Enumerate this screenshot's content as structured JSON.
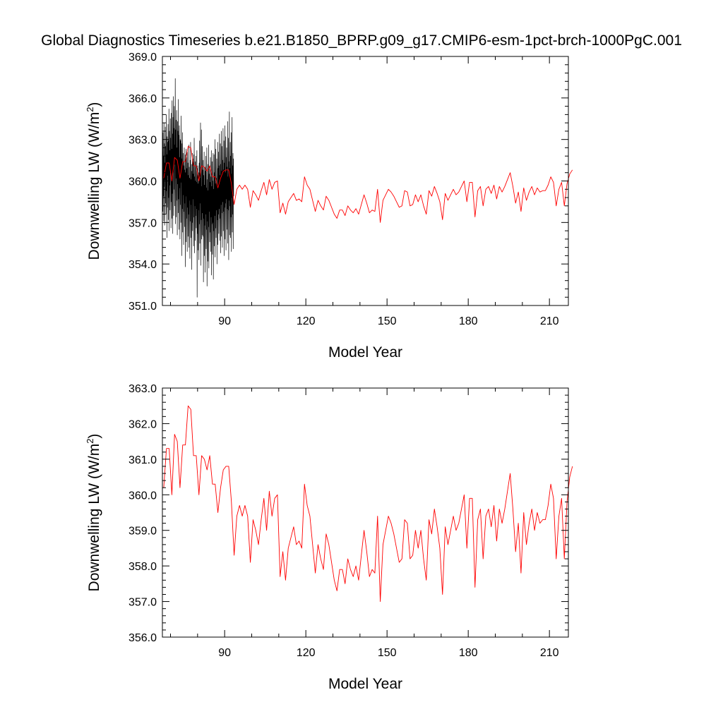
{
  "title": "Global Diagnostics Timeseries b.e21.B1850_BPRP.g09_g17.CMIP6-esm-1pct-brch-1000PgC.001",
  "colors": {
    "monthly": "#000000",
    "annual": "#ff0000",
    "axes": "#000000"
  },
  "chart_data": [
    {
      "type": "line",
      "title": "",
      "xlabel": "Model Year",
      "ylabel": "Downwelling LW (W/m",
      "ylabel_superscript": "2",
      "ylabel_close": ")",
      "xlim": [
        67,
        217
      ],
      "ylim": [
        351.0,
        369.0
      ],
      "x_ticks": [
        90,
        120,
        150,
        180,
        210
      ],
      "x_tick_labels": [
        "90",
        "120",
        "150",
        "180",
        "210"
      ],
      "y_ticks": [
        351.0,
        354.0,
        357.0,
        360.0,
        363.0,
        366.0,
        369.0
      ],
      "y_tick_labels": [
        "351.0",
        "354.0",
        "357.0",
        "360.0",
        "363.0",
        "366.0",
        "369.0"
      ],
      "grid": false,
      "series": [
        {
          "style": "monthly-raw",
          "color": "#000000",
          "x_start": 67.0,
          "x_step": 0.0833333,
          "values": [
            359.2,
            362.1,
            357.8,
            363.5,
            358.9,
            361.8,
            357.1,
            364.2,
            359.6,
            362.7,
            356.8,
            361.3,
            360.1,
            363.9,
            358.4,
            362.5,
            357.6,
            364.8,
            359.3,
            361.9,
            355.9,
            363.2,
            358.1,
            362.8,
            360.4,
            364.1,
            357.2,
            362.9,
            358.8,
            365.2,
            356.4,
            363.6,
            359.7,
            362.2,
            357.9,
            364.5,
            360.6,
            363.1,
            356.6,
            364.9,
            358.5,
            362.3,
            357.3,
            365.8,
            359.1,
            363.4,
            356.2,
            364.6,
            360.9,
            366.1,
            357.5,
            363.8,
            359.4,
            365.4,
            358.2,
            362.6,
            361.2,
            367.4,
            356.9,
            363.7,
            360.2,
            364.4,
            357.4,
            365.1,
            358.6,
            362.4,
            356.1,
            364.3,
            359.8,
            363.6,
            357.7,
            365.9,
            358.7,
            363.3,
            356.5,
            364.0,
            359.5,
            361.7,
            355.8,
            363.0,
            358.3,
            362.9,
            357.0,
            364.7,
            359.9,
            361.6,
            354.6,
            362.7,
            358.0,
            363.5,
            356.3,
            361.4,
            359.0,
            362.0,
            355.4,
            361.1,
            357.8,
            362.4,
            356.7,
            360.8,
            358.4,
            361.9,
            353.8,
            360.6,
            358.9,
            362.3,
            355.6,
            361.7,
            357.3,
            360.9,
            354.9,
            362.1,
            358.1,
            361.3,
            356.0,
            360.4,
            357.6,
            362.6,
            355.2,
            361.0,
            358.6,
            360.2,
            354.4,
            361.5,
            357.1,
            362.8,
            355.9,
            360.1,
            358.3,
            361.2,
            353.6,
            360.7,
            357.0,
            362.0,
            356.4,
            361.6,
            358.7,
            360.5,
            355.3,
            361.9,
            357.4,
            363.1,
            354.8,
            360.3,
            358.2,
            361.4,
            355.7,
            360.0,
            357.5,
            361.8,
            356.6,
            359.9,
            358.0,
            362.2,
            351.6,
            360.9,
            356.2,
            361.1,
            355.0,
            359.8,
            357.9,
            360.6,
            354.3,
            361.3,
            356.9,
            362.9,
            355.5,
            360.2,
            358.4,
            364.2,
            353.9,
            361.0,
            357.2,
            363.7,
            355.8,
            359.6,
            357.7,
            362.5,
            356.1,
            360.8,
            356.0,
            361.5,
            352.7,
            360.4,
            357.3,
            362.1,
            354.6,
            359.7,
            356.8,
            361.0,
            353.4,
            360.7,
            357.6,
            361.8,
            355.1,
            359.5,
            356.5,
            362.4,
            352.4,
            360.1,
            357.1,
            361.2,
            354.2,
            359.3,
            356.7,
            362.6,
            353.7,
            360.5,
            357.8,
            361.0,
            355.6,
            359.9,
            356.3,
            361.7,
            354.9,
            360.3,
            357.4,
            362.2,
            353.2,
            359.6,
            356.9,
            361.4,
            354.7,
            360.0,
            357.0,
            362.0,
            352.9,
            359.4,
            356.4,
            361.9,
            355.3,
            360.6,
            357.5,
            363.0,
            354.5,
            359.8,
            356.6,
            362.3,
            355.9,
            360.2,
            357.9,
            361.6,
            354.0,
            359.7,
            357.2,
            362.8,
            355.4,
            360.9,
            357.6,
            362.1,
            356.2,
            361.1,
            358.0,
            363.4,
            355.7,
            360.4,
            357.3,
            362.7,
            354.8,
            361.2,
            358.3,
            363.6,
            356.0,
            360.7,
            357.7,
            362.5,
            355.2,
            361.5,
            358.5,
            363.8,
            356.4,
            360.8,
            357.8,
            362.9,
            354.6,
            361.3,
            358.1,
            364.0,
            355.8,
            360.6,
            358.4,
            363.2,
            355.0,
            361.7,
            358.7,
            362.4,
            356.5,
            361.0,
            358.0,
            364.3,
            355.5,
            360.3,
            357.9,
            363.1,
            354.3,
            361.4,
            358.6,
            365.0,
            356.1,
            360.9,
            358.2,
            362.8,
            355.9,
            361.8,
            357.4,
            363.5,
            354.9,
            360.5,
            358.8,
            364.6,
            356.3,
            361.1,
            357.6,
            362.0,
            355.1,
            361.6,
            358.9
          ]
        },
        {
          "style": "annual-mean",
          "color": "#ff0000",
          "x_start": 67.5,
          "x_step": 1,
          "values": [
            360.2,
            361.3,
            361.3,
            360.0,
            361.7,
            361.5,
            360.2,
            361.4,
            361.4,
            362.5,
            362.4,
            361.1,
            361.1,
            360.0,
            361.1,
            361.0,
            360.7,
            361.1,
            360.3,
            360.3,
            359.5,
            360.2,
            360.7,
            360.8,
            360.8,
            359.8,
            358.3,
            359.4,
            359.7,
            359.4,
            359.7,
            359.4,
            358.1,
            359.3,
            359.0,
            358.6,
            359.3,
            359.9,
            359.0,
            360.1,
            359.4,
            359.9,
            360.0,
            357.7,
            358.4,
            357.6,
            358.5,
            358.8,
            359.1,
            358.6,
            358.7,
            358.5,
            360.3,
            359.7,
            359.4,
            358.6,
            357.8,
            358.6,
            358.2,
            357.9,
            358.9,
            358.6,
            358.1,
            357.6,
            357.3,
            357.9,
            357.9,
            357.5,
            358.2,
            357.9,
            357.7,
            358.0,
            357.6,
            358.3,
            359.0,
            358.4,
            357.7,
            357.9,
            357.8,
            359.4,
            357.0,
            358.6,
            359.0,
            359.4,
            359.2,
            358.9,
            358.5,
            358.1,
            358.2,
            359.3,
            359.2,
            358.2,
            358.3,
            359.0,
            358.5,
            359.0,
            358.2,
            357.6,
            359.3,
            358.9,
            359.6,
            359.1,
            358.5,
            357.2,
            359.1,
            358.6,
            359.0,
            359.4,
            359.0,
            359.2,
            359.6,
            360.0,
            358.5,
            359.9,
            359.9,
            357.4,
            359.3,
            359.6,
            358.2,
            359.4,
            359.6,
            359.1,
            359.7,
            358.7,
            359.6,
            359.2,
            359.6,
            360.1,
            360.6,
            359.6,
            358.4,
            359.2,
            357.8,
            359.5,
            358.6,
            359.2,
            359.6,
            359.0,
            359.5,
            359.2,
            359.3,
            359.3,
            359.7,
            360.3,
            359.9,
            358.2,
            359.4,
            359.9,
            358.2,
            359.8,
            360.5,
            360.8
          ]
        }
      ]
    },
    {
      "type": "line",
      "title": "",
      "xlabel": "Model Year",
      "ylabel": "Downwelling LW (W/m",
      "ylabel_superscript": "2",
      "ylabel_close": ")",
      "xlim": [
        67,
        217
      ],
      "ylim": [
        356.0,
        363.0
      ],
      "x_ticks": [
        90,
        120,
        150,
        180,
        210
      ],
      "x_tick_labels": [
        "90",
        "120",
        "150",
        "180",
        "210"
      ],
      "y_ticks": [
        356.0,
        357.0,
        358.0,
        359.0,
        360.0,
        361.0,
        362.0,
        363.0
      ],
      "y_tick_labels": [
        "356.0",
        "357.0",
        "358.0",
        "359.0",
        "360.0",
        "361.0",
        "362.0",
        "363.0"
      ],
      "grid": false,
      "series": [
        {
          "style": "annual-mean",
          "color": "#ff0000",
          "x_start": 67.5,
          "x_step": 1,
          "values": [
            360.2,
            361.3,
            361.3,
            360.0,
            361.7,
            361.5,
            360.2,
            361.4,
            361.4,
            362.5,
            362.4,
            361.1,
            361.1,
            360.0,
            361.1,
            361.0,
            360.7,
            361.1,
            360.3,
            360.3,
            359.5,
            360.2,
            360.7,
            360.8,
            360.8,
            359.8,
            358.3,
            359.4,
            359.7,
            359.4,
            359.7,
            359.4,
            358.1,
            359.3,
            359.0,
            358.6,
            359.3,
            359.9,
            359.0,
            360.1,
            359.4,
            359.9,
            360.0,
            357.7,
            358.4,
            357.6,
            358.5,
            358.8,
            359.1,
            358.6,
            358.7,
            358.5,
            360.3,
            359.7,
            359.4,
            358.6,
            357.8,
            358.6,
            358.2,
            357.9,
            358.9,
            358.6,
            358.1,
            357.6,
            357.3,
            357.9,
            357.9,
            357.5,
            358.2,
            357.9,
            357.7,
            358.0,
            357.6,
            358.3,
            359.0,
            358.4,
            357.7,
            357.9,
            357.8,
            359.4,
            357.0,
            358.6,
            359.0,
            359.4,
            359.2,
            358.9,
            358.5,
            358.1,
            358.2,
            359.3,
            359.2,
            358.2,
            358.3,
            359.0,
            358.5,
            359.0,
            358.2,
            357.6,
            359.3,
            358.9,
            359.6,
            359.1,
            358.5,
            357.2,
            359.1,
            358.6,
            359.0,
            359.4,
            359.0,
            359.2,
            359.6,
            360.0,
            358.5,
            359.9,
            359.9,
            357.4,
            359.3,
            359.6,
            358.2,
            359.4,
            359.6,
            359.1,
            359.7,
            358.7,
            359.6,
            359.2,
            359.6,
            360.1,
            360.6,
            359.6,
            358.4,
            359.2,
            357.8,
            359.5,
            358.6,
            359.2,
            359.6,
            359.0,
            359.5,
            359.2,
            359.3,
            359.3,
            359.7,
            360.3,
            359.9,
            358.2,
            359.4,
            359.9,
            358.2,
            359.8,
            360.5,
            360.8
          ]
        }
      ]
    }
  ]
}
